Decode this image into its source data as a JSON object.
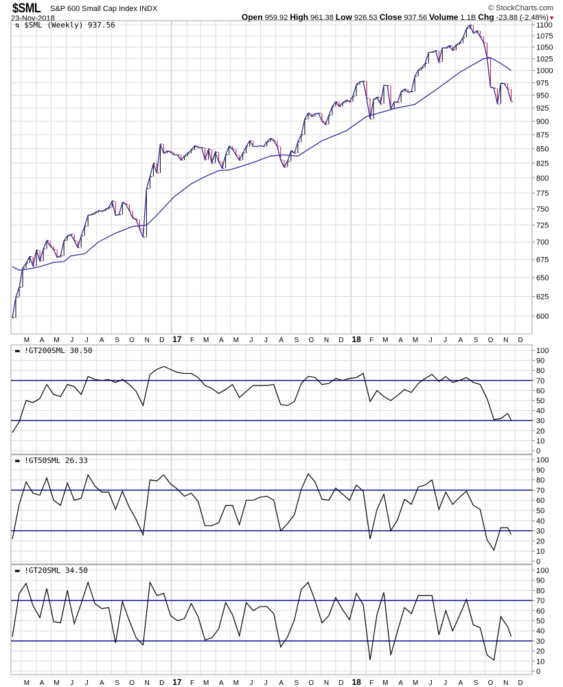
{
  "header": {
    "symbol": "$SML",
    "name": "S&P 600 Small Cap Index",
    "exchange": "INDX",
    "date": "23-Nov-2018",
    "copyright": "© StockCharts.com",
    "open_label": "Open",
    "open": "959.92",
    "high_label": "High",
    "high": "961.38",
    "low_label": "Low",
    "low": "926.53",
    "close_label": "Close",
    "close": "937.56",
    "volume_label": "Volume",
    "volume": "1.1B",
    "chg_label": "Chg",
    "chg": "-23.88 (-2.48%)",
    "chg_icon": "triangle-down-icon"
  },
  "colors": {
    "up_bar": "#000000",
    "down_bar": "#cc0033",
    "close_line": "#2a2a9a",
    "moving_average": "#2b2b9c",
    "reference_lines": "#000080",
    "indicator_line": "#000000",
    "grid": "#dcdcdc",
    "panel_border": "#a0a0a0"
  },
  "chart_data": [
    {
      "type": "line",
      "legend": "$SML (Weekly) 937.56",
      "frequency": "weekly",
      "x_range": [
        "2016-02-12",
        "2018-11-23"
      ],
      "y_scale": "log",
      "ylim": [
        579,
        1109
      ],
      "y_ticks": [
        600,
        625,
        650,
        675,
        700,
        725,
        750,
        775,
        800,
        825,
        850,
        875,
        900,
        925,
        950,
        975,
        1000,
        1025,
        1050,
        1075,
        1100
      ],
      "grid": true,
      "series": [
        {
          "role": "weekly close",
          "values": [
            598,
            624,
            637,
            663,
            670,
            679,
            666,
            688,
            673,
            690,
            702,
            694,
            689,
            678,
            680,
            702,
            709,
            711,
            702,
            692,
            709,
            723,
            740,
            741,
            744,
            747,
            746,
            749,
            752,
            762,
            740,
            741,
            760,
            757,
            747,
            736,
            733,
            719,
            707,
            782,
            802,
            824,
            808,
            858,
            842,
            846,
            844,
            839,
            839,
            830,
            837,
            842,
            848,
            855,
            852,
            852,
            831,
            849,
            825,
            844,
            827,
            816,
            839,
            854,
            849,
            839,
            830,
            842,
            854,
            864,
            854,
            854,
            855,
            854,
            862,
            868,
            864,
            854,
            830,
            818,
            828,
            846,
            842,
            862,
            875,
            904,
            915,
            909,
            914,
            915,
            900,
            894,
            911,
            928,
            937,
            928,
            935,
            940,
            937,
            948,
            971,
            977,
            978,
            944,
            904,
            942,
            946,
            933,
            970,
            969,
            923,
            937,
            936,
            957,
            962,
            956,
            957,
            988,
            1001,
            1006,
            1015,
            1038,
            1039,
            1042,
            1018,
            1048,
            1048,
            1053,
            1043,
            1055,
            1059,
            1071,
            1091,
            1099,
            1081,
            1086,
            1073,
            1060,
            1028,
            966,
            964,
            933,
            974,
            973,
            962,
            937.56
          ]
        },
        {
          "role": "moving average",
          "points": [
            [
              "2016-02-12",
              665
            ],
            [
              "2016-02-26",
              660
            ],
            [
              "2016-03-18",
              662
            ],
            [
              "2016-04-08",
              665
            ],
            [
              "2016-05-06",
              671
            ],
            [
              "2016-05-27",
              672
            ],
            [
              "2016-06-10",
              680
            ],
            [
              "2016-07-08",
              683
            ],
            [
              "2016-08-05",
              700
            ],
            [
              "2016-09-09",
              713
            ],
            [
              "2016-10-14",
              723
            ],
            [
              "2016-11-11",
              725
            ],
            [
              "2016-12-02",
              740
            ],
            [
              "2017-01-06",
              769
            ],
            [
              "2017-02-10",
              790
            ],
            [
              "2017-03-10",
              802
            ],
            [
              "2017-04-07",
              812
            ],
            [
              "2017-04-28",
              813
            ],
            [
              "2017-05-26",
              820
            ],
            [
              "2017-06-23",
              828
            ],
            [
              "2017-07-21",
              837
            ],
            [
              "2017-08-18",
              839
            ],
            [
              "2017-09-15",
              837
            ],
            [
              "2017-11-03",
              864
            ],
            [
              "2017-12-22",
              882
            ],
            [
              "2018-02-02",
              909
            ],
            [
              "2018-03-09",
              918
            ],
            [
              "2018-03-30",
              924
            ],
            [
              "2018-05-11",
              932
            ],
            [
              "2018-06-29",
              965
            ],
            [
              "2018-08-10",
              996
            ],
            [
              "2018-09-28",
              1025
            ],
            [
              "2018-10-12",
              1027
            ],
            [
              "2018-11-02",
              1015
            ],
            [
              "2018-11-23",
              1000
            ]
          ]
        }
      ],
      "month_ticks": [
        {
          "label": "M",
          "date": "2016-03-01"
        },
        {
          "label": "A",
          "date": "2016-04-01"
        },
        {
          "label": "M",
          "date": "2016-05-01"
        },
        {
          "label": "J",
          "date": "2016-06-01"
        },
        {
          "label": "J",
          "date": "2016-07-01"
        },
        {
          "label": "A",
          "date": "2016-08-01"
        },
        {
          "label": "S",
          "date": "2016-09-01"
        },
        {
          "label": "O",
          "date": "2016-10-01"
        },
        {
          "label": "N",
          "date": "2016-11-01"
        },
        {
          "label": "D",
          "date": "2016-12-01"
        },
        {
          "label": "17",
          "date": "2017-01-01",
          "year": true
        },
        {
          "label": "F",
          "date": "2017-02-01"
        },
        {
          "label": "M",
          "date": "2017-03-01"
        },
        {
          "label": "A",
          "date": "2017-04-01"
        },
        {
          "label": "M",
          "date": "2017-05-01"
        },
        {
          "label": "J",
          "date": "2017-06-01"
        },
        {
          "label": "J",
          "date": "2017-07-01"
        },
        {
          "label": "A",
          "date": "2017-08-01"
        },
        {
          "label": "S",
          "date": "2017-09-01"
        },
        {
          "label": "O",
          "date": "2017-10-01"
        },
        {
          "label": "N",
          "date": "2017-11-01"
        },
        {
          "label": "D",
          "date": "2017-12-01"
        },
        {
          "label": "18",
          "date": "2018-01-01",
          "year": true
        },
        {
          "label": "F",
          "date": "2018-02-01"
        },
        {
          "label": "M",
          "date": "2018-03-01"
        },
        {
          "label": "A",
          "date": "2018-04-01"
        },
        {
          "label": "M",
          "date": "2018-05-01"
        },
        {
          "label": "J",
          "date": "2018-06-01"
        },
        {
          "label": "J",
          "date": "2018-07-01"
        },
        {
          "label": "A",
          "date": "2018-08-01"
        },
        {
          "label": "S",
          "date": "2018-09-01"
        },
        {
          "label": "O",
          "date": "2018-10-01"
        },
        {
          "label": "N",
          "date": "2018-11-01"
        },
        {
          "label": "D",
          "date": "2018-12-01"
        }
      ]
    },
    {
      "type": "line",
      "legend": "!GT200SML 30.50",
      "ylim": [
        0,
        100
      ],
      "y_ticks": [
        0,
        10,
        20,
        30,
        40,
        50,
        60,
        70,
        80,
        90,
        100
      ],
      "reference_lines": [
        70,
        30
      ],
      "sampling": "every 2 weeks",
      "values": [
        18,
        29,
        50,
        48,
        52,
        66,
        56,
        54,
        66,
        64,
        56,
        74,
        71,
        70,
        71,
        68,
        71,
        66,
        59,
        45,
        76,
        81,
        84,
        81,
        78,
        77,
        77,
        73,
        65,
        62,
        57,
        61,
        66,
        53,
        59,
        65,
        65,
        65,
        66,
        46,
        45,
        49,
        67,
        74,
        73,
        66,
        67,
        72,
        70,
        72,
        73,
        77,
        49,
        60,
        54,
        50,
        55,
        61,
        58,
        67,
        72,
        76,
        69,
        74,
        68,
        70,
        73,
        68,
        66,
        52,
        31,
        32,
        37
      ],
      "latest": 30.5
    },
    {
      "type": "line",
      "legend": "!GT50SML 26.33",
      "ylim": [
        0,
        100
      ],
      "y_ticks": [
        0,
        10,
        20,
        30,
        40,
        50,
        60,
        70,
        80,
        90,
        100
      ],
      "reference_lines": [
        70,
        30
      ],
      "sampling": "every 2 weeks",
      "values": [
        22,
        56,
        78,
        67,
        65,
        82,
        60,
        55,
        77,
        60,
        62,
        85,
        74,
        68,
        68,
        51,
        69,
        53,
        41,
        26,
        80,
        79,
        85,
        76,
        71,
        64,
        67,
        59,
        35,
        35,
        38,
        55,
        55,
        36,
        60,
        60,
        63,
        64,
        60,
        30,
        37,
        46,
        71,
        86,
        78,
        61,
        60,
        72,
        66,
        60,
        75,
        69,
        22,
        51,
        66,
        30,
        41,
        61,
        56,
        73,
        75,
        80,
        51,
        68,
        56,
        63,
        69,
        55,
        51,
        21,
        11,
        33,
        33
      ],
      "latest": 26.33
    },
    {
      "type": "line",
      "legend": "!GT20SML 34.50",
      "ylim": [
        0,
        100
      ],
      "y_ticks": [
        0,
        10,
        20,
        30,
        40,
        50,
        60,
        70,
        80,
        90,
        100
      ],
      "reference_lines": [
        70,
        30
      ],
      "sampling": "every 2 weeks",
      "values": [
        34,
        77,
        87,
        65,
        53,
        82,
        49,
        48,
        80,
        47,
        67,
        88,
        67,
        62,
        63,
        28,
        69,
        50,
        33,
        26,
        88,
        75,
        77,
        55,
        50,
        52,
        67,
        54,
        31,
        33,
        42,
        68,
        56,
        35,
        68,
        60,
        64,
        64,
        57,
        24,
        34,
        51,
        81,
        88,
        70,
        48,
        55,
        73,
        61,
        51,
        77,
        66,
        11,
        56,
        78,
        16,
        40,
        63,
        57,
        75,
        75,
        75,
        36,
        60,
        40,
        55,
        71,
        46,
        43,
        16,
        11,
        54,
        44
      ],
      "latest": 34.5
    }
  ]
}
